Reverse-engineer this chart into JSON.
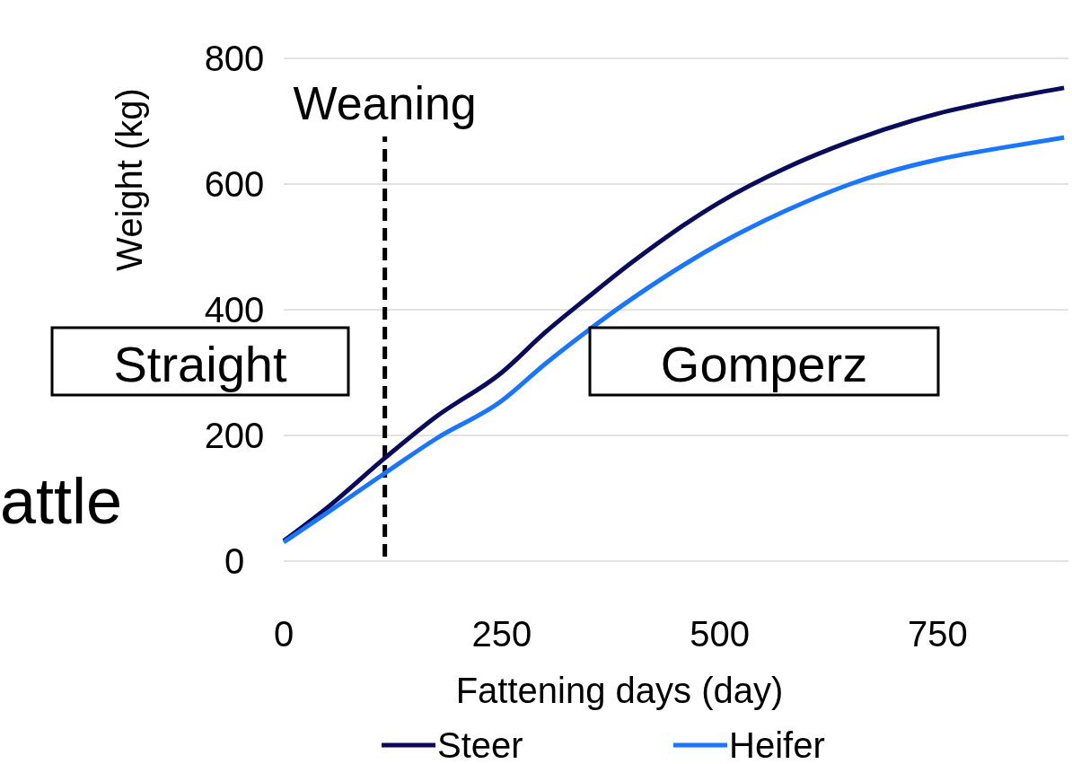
{
  "chart_data": {
    "type": "line",
    "xlabel": "Fattening days (day)",
    "ylabel": "Weight (kg)",
    "xlim": [
      0,
      900
    ],
    "xticks": [
      0,
      250,
      500,
      750
    ],
    "ylim": [
      0,
      800
    ],
    "yticks": [
      0,
      200,
      400,
      600,
      800
    ],
    "grid": "y",
    "legend": "bottom",
    "line_style": "solid",
    "x": [
      0,
      50,
      116,
      175,
      250,
      300,
      350,
      400,
      500,
      575,
      650,
      750,
      825,
      895
    ],
    "series": [
      {
        "name": "Steer",
        "color": "#0b0b5c",
        "values": [
          32,
          85,
          164,
          230,
          300,
          364,
          421,
          476,
          571,
          625,
          668,
          712,
          735,
          753
        ]
      },
      {
        "name": "Heifer",
        "color": "#1a75ff",
        "values": [
          30,
          77,
          140,
          195,
          255,
          314,
          368,
          418,
          505,
          557,
          600,
          639,
          658,
          674
        ]
      }
    ],
    "ref_lines": [
      {
        "axis": "x",
        "value": 116,
        "label": "Weaning",
        "color": "#000000",
        "line_style": "dashed"
      }
    ],
    "annotations": [
      "Straight",
      "Gomperz",
      "attle"
    ]
  }
}
